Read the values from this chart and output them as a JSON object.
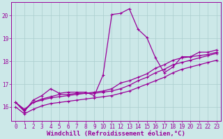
{
  "background_color": "#cce8e8",
  "line_color": "#990099",
  "grid_color": "#aacece",
  "xlabel": "Windchill (Refroidissement éolien,°C)",
  "xlim": [
    -0.5,
    23.5
  ],
  "ylim": [
    15.4,
    20.6
  ],
  "yticks": [
    16,
    17,
    18,
    19,
    20
  ],
  "xticks": [
    0,
    1,
    2,
    3,
    4,
    5,
    6,
    7,
    8,
    9,
    10,
    11,
    12,
    13,
    14,
    15,
    16,
    17,
    18,
    19,
    20,
    21,
    22,
    23
  ],
  "series": [
    {
      "x": [
        0,
        1,
        2,
        3,
        4,
        5,
        6,
        7,
        8,
        9,
        10,
        11,
        12,
        13,
        14,
        15,
        16,
        17,
        18,
        19,
        20,
        21,
        22,
        23
      ],
      "y": [
        16.2,
        15.8,
        16.3,
        16.5,
        16.8,
        16.6,
        16.65,
        16.65,
        16.65,
        16.5,
        17.4,
        20.05,
        20.1,
        20.3,
        19.4,
        19.05,
        18.15,
        17.5,
        17.75,
        18.2,
        18.2,
        18.4,
        18.4,
        18.5
      ]
    },
    {
      "x": [
        0,
        1,
        2,
        3,
        4,
        5,
        6,
        7,
        8,
        9,
        10,
        11,
        12,
        13,
        14,
        15,
        16,
        17,
        18,
        19,
        20,
        21,
        22,
        23
      ],
      "y": [
        16.2,
        15.85,
        16.2,
        16.35,
        16.45,
        16.55,
        16.55,
        16.6,
        16.6,
        16.65,
        16.7,
        16.8,
        17.05,
        17.15,
        17.3,
        17.45,
        17.7,
        17.85,
        18.05,
        18.15,
        18.2,
        18.25,
        18.3,
        18.4
      ]
    },
    {
      "x": [
        0,
        1,
        2,
        3,
        4,
        5,
        6,
        7,
        8,
        9,
        10,
        11,
        12,
        13,
        14,
        15,
        16,
        17,
        18,
        19,
        20,
        21,
        22,
        23
      ],
      "y": [
        16.2,
        15.9,
        16.2,
        16.3,
        16.4,
        16.45,
        16.5,
        16.55,
        16.6,
        16.6,
        16.65,
        16.7,
        16.8,
        16.95,
        17.15,
        17.3,
        17.5,
        17.65,
        17.85,
        17.95,
        18.05,
        18.15,
        18.25,
        18.35
      ]
    },
    {
      "x": [
        0,
        1,
        2,
        3,
        4,
        5,
        6,
        7,
        8,
        9,
        10,
        11,
        12,
        13,
        14,
        15,
        16,
        17,
        18,
        19,
        20,
        21,
        22,
        23
      ],
      "y": [
        16.0,
        15.7,
        15.9,
        16.05,
        16.15,
        16.2,
        16.25,
        16.3,
        16.35,
        16.4,
        16.45,
        16.5,
        16.6,
        16.7,
        16.85,
        17.0,
        17.15,
        17.3,
        17.5,
        17.65,
        17.75,
        17.85,
        17.95,
        18.05
      ]
    }
  ],
  "tick_fontsize": 5.5,
  "axis_fontsize": 6.5,
  "marker_size": 2.5,
  "line_width": 0.9
}
